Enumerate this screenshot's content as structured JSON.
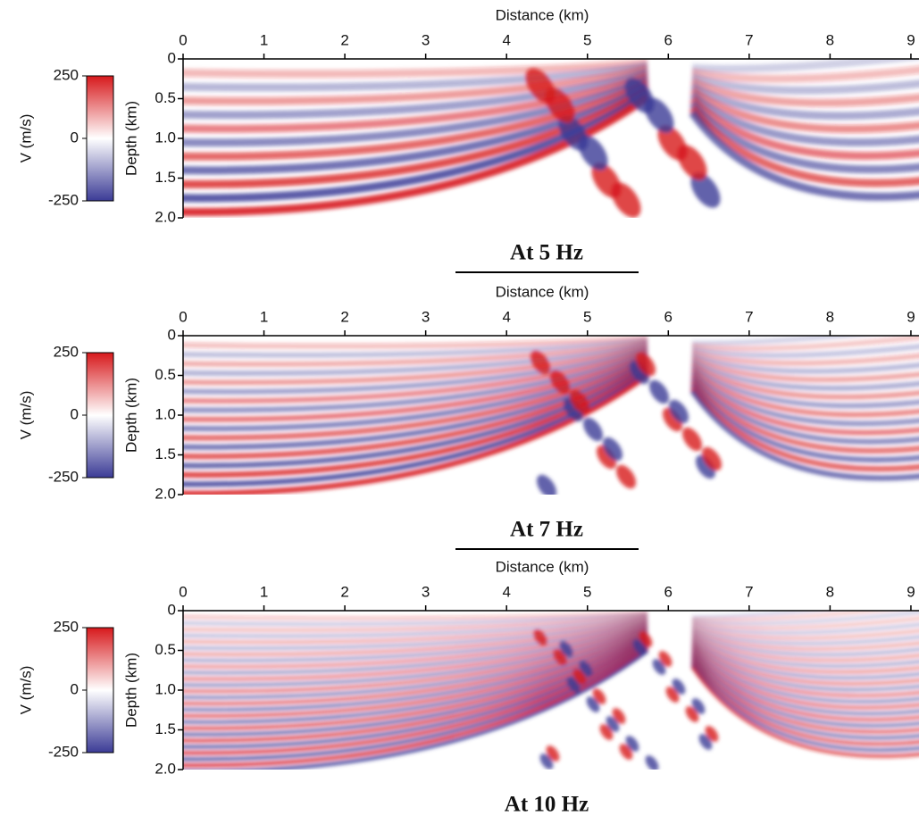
{
  "chart_data": [
    {
      "type": "heatmap",
      "title": "At 5 Hz",
      "xlabel": "Distance (km)",
      "ylabel": "Depth (km)",
      "xlim": [
        0,
        9.1
      ],
      "xticks": [
        0,
        1,
        2,
        3,
        4,
        5,
        6,
        7,
        8,
        9
      ],
      "ylim": [
        2,
        0
      ],
      "yticks": [
        0,
        0.5,
        {
          "value": 1,
          "label": "1.0"
        },
        1.5,
        {
          "value": 2,
          "label": "2.0"
        }
      ],
      "colorbar": {
        "label": "V (m/s)",
        "lim": [
          -250,
          250
        ],
        "ticks": [
          250,
          0,
          -250
        ],
        "colors": [
          "#3b3b96",
          "#ffffff",
          "#d7191c"
        ]
      }
    },
    {
      "type": "heatmap",
      "title": "At 7 Hz",
      "xlabel": "Distance (km)",
      "ylabel": "Depth (km)",
      "xlim": [
        0,
        9.1
      ],
      "xticks": [
        0,
        1,
        2,
        3,
        4,
        5,
        6,
        7,
        8,
        9
      ],
      "ylim": [
        2,
        0
      ],
      "yticks": [
        0,
        0.5,
        {
          "value": 1,
          "label": "1.0"
        },
        1.5,
        {
          "value": 2,
          "label": "2.0"
        }
      ],
      "colorbar": {
        "label": "V (m/s)",
        "lim": [
          -250,
          250
        ],
        "ticks": [
          250,
          0,
          -250
        ],
        "colors": [
          "#3b3b96",
          "#ffffff",
          "#d7191c"
        ]
      }
    },
    {
      "type": "heatmap",
      "title": "At 10 Hz",
      "xlabel": "Distance (km)",
      "ylabel": "Depth (km)",
      "xlim": [
        0,
        9.1
      ],
      "xticks": [
        0,
        1,
        2,
        3,
        4,
        5,
        6,
        7,
        8,
        9
      ],
      "ylim": [
        2,
        0
      ],
      "yticks": [
        0,
        0.5,
        {
          "value": 1,
          "label": "1.0"
        },
        1.5,
        {
          "value": 2,
          "label": "2.0"
        }
      ],
      "colorbar": {
        "label": "V (m/s)",
        "lim": [
          -250,
          250
        ],
        "ticks": [
          250,
          0,
          -250
        ],
        "colors": [
          "#3b3b96",
          "#ffffff",
          "#d7191c"
        ]
      }
    }
  ]
}
